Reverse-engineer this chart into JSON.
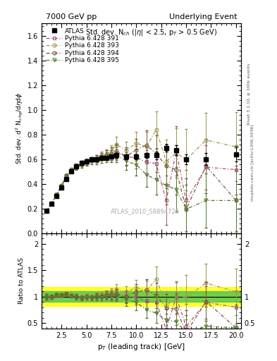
{
  "title_left": "7000 GeV pp",
  "title_right": "Underlying Event",
  "subtitle": "Std. dev. N$_{ch}$ (|$\\eta$| < 2.5, p$_T$ > 0.5 GeV)",
  "watermark": "ATLAS_2010_S8894728",
  "ylabel_main": "Std. dev. d$^2$ N$_{chg}$/d$\\eta$d$\\phi$",
  "ylabel_ratio": "Ratio to ATLAS",
  "xlabel": "p$_T$ (leading track) [GeV]",
  "right_label": "Rivet 3.1.10, ≥ 100k events",
  "right_label2": "mcplots.cern.ch [arXiv:1306.3436]",
  "xlim": [
    0.5,
    20.5
  ],
  "ylim_main": [
    0.0,
    1.7
  ],
  "ylim_ratio": [
    0.4,
    2.2
  ],
  "atlas_x": [
    1.0,
    1.5,
    2.0,
    2.5,
    3.0,
    3.5,
    4.0,
    4.5,
    5.0,
    5.5,
    6.0,
    6.5,
    7.0,
    7.5,
    8.0,
    9.0,
    10.0,
    11.0,
    12.0,
    13.0,
    14.0,
    15.0,
    17.0,
    20.0
  ],
  "atlas_y": [
    0.18,
    0.24,
    0.3,
    0.37,
    0.44,
    0.5,
    0.54,
    0.57,
    0.58,
    0.6,
    0.6,
    0.61,
    0.61,
    0.62,
    0.63,
    0.62,
    0.62,
    0.63,
    0.63,
    0.69,
    0.67,
    0.6,
    0.6,
    0.64
  ],
  "atlas_yerr": [
    0.01,
    0.01,
    0.01,
    0.01,
    0.01,
    0.01,
    0.01,
    0.01,
    0.01,
    0.01,
    0.01,
    0.01,
    0.01,
    0.01,
    0.02,
    0.02,
    0.02,
    0.02,
    0.03,
    0.03,
    0.04,
    0.04,
    0.05,
    0.06
  ],
  "py391_x": [
    1.0,
    1.5,
    2.0,
    2.5,
    3.0,
    3.5,
    4.0,
    4.5,
    5.0,
    5.5,
    6.0,
    6.5,
    7.0,
    7.5,
    8.0,
    9.0,
    10.0,
    11.0,
    12.0,
    13.0,
    14.0,
    15.0,
    17.0,
    20.0
  ],
  "py391_y": [
    0.18,
    0.24,
    0.31,
    0.38,
    0.46,
    0.51,
    0.54,
    0.56,
    0.58,
    0.595,
    0.605,
    0.62,
    0.635,
    0.645,
    0.655,
    0.615,
    0.615,
    0.575,
    0.565,
    0.265,
    0.665,
    0.265,
    0.535,
    0.515
  ],
  "py391_yerr": [
    0.01,
    0.01,
    0.01,
    0.01,
    0.01,
    0.01,
    0.02,
    0.02,
    0.02,
    0.02,
    0.03,
    0.03,
    0.04,
    0.05,
    0.06,
    0.07,
    0.09,
    0.1,
    0.12,
    0.2,
    0.2,
    0.25,
    0.18,
    0.2
  ],
  "py393_x": [
    1.0,
    1.5,
    2.0,
    2.5,
    3.0,
    3.5,
    4.0,
    4.5,
    5.0,
    5.5,
    6.0,
    6.5,
    7.0,
    7.5,
    8.0,
    9.0,
    10.0,
    11.0,
    12.0,
    13.0,
    14.0,
    15.0,
    17.0,
    20.0
  ],
  "py393_y": [
    0.18,
    0.24,
    0.31,
    0.385,
    0.47,
    0.52,
    0.545,
    0.565,
    0.575,
    0.595,
    0.605,
    0.63,
    0.64,
    0.665,
    0.72,
    0.67,
    0.73,
    0.7,
    0.84,
    0.58,
    0.65,
    0.595,
    0.755,
    0.7
  ],
  "py393_yerr": [
    0.01,
    0.01,
    0.01,
    0.01,
    0.01,
    0.01,
    0.02,
    0.02,
    0.02,
    0.02,
    0.03,
    0.03,
    0.04,
    0.05,
    0.06,
    0.07,
    0.09,
    0.12,
    0.15,
    0.18,
    0.2,
    0.25,
    0.22,
    0.28
  ],
  "py394_x": [
    1.0,
    1.5,
    2.0,
    2.5,
    3.0,
    3.5,
    4.0,
    4.5,
    5.0,
    5.5,
    6.0,
    6.5,
    7.0,
    7.5,
    8.0,
    9.0,
    10.0,
    11.0,
    12.0,
    13.0,
    14.0,
    15.0,
    17.0,
    20.0
  ],
  "py394_y": [
    0.18,
    0.24,
    0.31,
    0.385,
    0.465,
    0.515,
    0.545,
    0.565,
    0.585,
    0.595,
    0.605,
    0.62,
    0.63,
    0.645,
    0.665,
    0.625,
    0.675,
    0.715,
    0.645,
    0.545,
    0.515,
    0.195,
    0.545,
    0.265
  ],
  "py394_yerr": [
    0.01,
    0.01,
    0.01,
    0.01,
    0.01,
    0.01,
    0.02,
    0.02,
    0.02,
    0.02,
    0.03,
    0.03,
    0.04,
    0.05,
    0.06,
    0.07,
    0.09,
    0.12,
    0.15,
    0.18,
    0.2,
    0.25,
    0.22,
    0.28
  ],
  "py395_x": [
    1.0,
    1.5,
    2.0,
    2.5,
    3.0,
    3.5,
    4.0,
    4.5,
    5.0,
    5.5,
    6.0,
    6.5,
    7.0,
    7.5,
    8.0,
    9.0,
    10.0,
    11.0,
    12.0,
    13.0,
    14.0,
    15.0,
    17.0,
    20.0
  ],
  "py395_y": [
    0.18,
    0.24,
    0.31,
    0.38,
    0.46,
    0.505,
    0.53,
    0.55,
    0.565,
    0.58,
    0.59,
    0.6,
    0.615,
    0.625,
    0.635,
    0.585,
    0.555,
    0.475,
    0.435,
    0.385,
    0.355,
    0.195,
    0.265,
    0.265
  ],
  "py395_yerr": [
    0.01,
    0.01,
    0.01,
    0.01,
    0.01,
    0.01,
    0.02,
    0.02,
    0.02,
    0.02,
    0.03,
    0.03,
    0.04,
    0.05,
    0.06,
    0.07,
    0.09,
    0.1,
    0.12,
    0.15,
    0.18,
    0.2,
    0.22,
    0.25
  ],
  "color_391": "#b05080",
  "color_393": "#9b9b50",
  "color_394": "#7a5535",
  "color_395": "#4d7a2a",
  "ratio_band_yellow": "#ffff00",
  "ratio_band_green": "#50c050",
  "ratio_band_yellow_lo": 0.82,
  "ratio_band_yellow_hi": 1.18,
  "ratio_band_green_lo": 0.9,
  "ratio_band_green_hi": 1.1
}
